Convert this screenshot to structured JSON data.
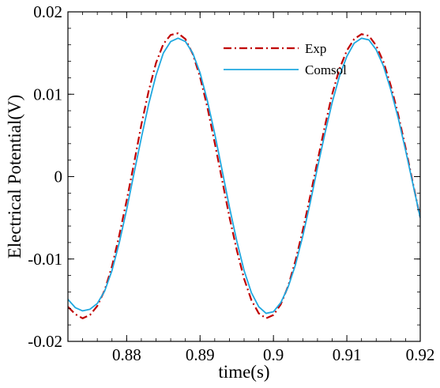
{
  "chart_data": {
    "type": "line",
    "xlabel": "time(s)",
    "ylabel": "Electrical Potential(V)",
    "xlim": [
      0.872,
      0.92
    ],
    "ylim": [
      -0.02,
      0.02
    ],
    "xticks": [
      0.88,
      0.89,
      0.9,
      0.91,
      0.92
    ],
    "xtick_labels": [
      "0.88",
      "0.89",
      "0.9",
      "0.91",
      "0.92"
    ],
    "yticks": [
      -0.02,
      -0.01,
      0,
      0.01,
      0.02
    ],
    "ytick_labels": [
      "-0.02",
      "-0.01",
      "0",
      "0.01",
      "0.02"
    ],
    "legend_position": "top-right",
    "series": [
      {
        "name": "Exp",
        "style": "dash-dot",
        "color": "#c00000",
        "x": [
          0.872,
          0.873,
          0.874,
          0.875,
          0.876,
          0.877,
          0.878,
          0.879,
          0.88,
          0.881,
          0.882,
          0.883,
          0.884,
          0.885,
          0.886,
          0.887,
          0.888,
          0.889,
          0.89,
          0.891,
          0.892,
          0.893,
          0.894,
          0.895,
          0.896,
          0.897,
          0.898,
          0.899,
          0.9,
          0.901,
          0.902,
          0.903,
          0.904,
          0.905,
          0.906,
          0.907,
          0.908,
          0.909,
          0.91,
          0.911,
          0.912,
          0.913,
          0.914,
          0.915,
          0.916,
          0.917,
          0.918,
          0.919,
          0.92
        ],
        "y": [
          -0.0158,
          -0.0167,
          -0.0172,
          -0.0168,
          -0.0157,
          -0.0138,
          -0.0109,
          -0.0071,
          -0.0029,
          0.0016,
          0.0063,
          0.0104,
          0.0138,
          0.0161,
          0.0172,
          0.0174,
          0.0167,
          0.0149,
          0.0121,
          0.0084,
          0.0041,
          -0.0004,
          -0.0049,
          -0.0089,
          -0.0124,
          -0.015,
          -0.0166,
          -0.0172,
          -0.0168,
          -0.0155,
          -0.0133,
          -0.0102,
          -0.0065,
          -0.0024,
          0.0019,
          0.0061,
          0.01,
          0.0131,
          0.0153,
          0.0167,
          0.0173,
          0.0171,
          0.0159,
          0.0139,
          0.011,
          0.0075,
          0.0035,
          -0.0008,
          -0.005
        ]
      },
      {
        "name": "Comsol",
        "style": "solid",
        "color": "#1fa8e0",
        "x": [
          0.872,
          0.873,
          0.874,
          0.875,
          0.876,
          0.877,
          0.878,
          0.879,
          0.88,
          0.881,
          0.882,
          0.883,
          0.884,
          0.885,
          0.886,
          0.887,
          0.888,
          0.889,
          0.89,
          0.891,
          0.892,
          0.893,
          0.894,
          0.895,
          0.896,
          0.897,
          0.898,
          0.899,
          0.9,
          0.901,
          0.902,
          0.903,
          0.904,
          0.905,
          0.906,
          0.907,
          0.908,
          0.909,
          0.91,
          0.911,
          0.912,
          0.913,
          0.914,
          0.915,
          0.916,
          0.917,
          0.918,
          0.919,
          0.92
        ],
        "y": [
          -0.0149,
          -0.0159,
          -0.0163,
          -0.0161,
          -0.0154,
          -0.0139,
          -0.0114,
          -0.008,
          -0.004,
          0.0004,
          0.0047,
          0.0088,
          0.0123,
          0.015,
          0.0164,
          0.0168,
          0.0164,
          0.015,
          0.0126,
          0.0092,
          0.0052,
          0.0008,
          -0.0037,
          -0.0078,
          -0.0114,
          -0.0141,
          -0.0158,
          -0.0166,
          -0.0164,
          -0.0153,
          -0.0134,
          -0.0107,
          -0.0072,
          -0.0032,
          0.0011,
          0.0052,
          0.009,
          0.0122,
          0.0146,
          0.0162,
          0.0168,
          0.0166,
          0.0154,
          0.0134,
          0.0105,
          0.0071,
          0.0032,
          -0.0009,
          -0.005
        ]
      }
    ]
  }
}
